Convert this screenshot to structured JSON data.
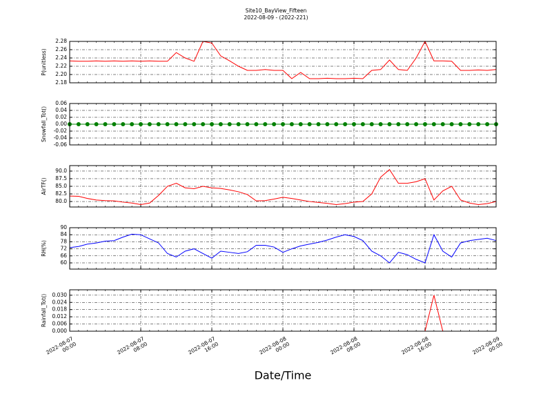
{
  "chart_data": {
    "type": "line",
    "title": "Site10_BayView_Fifteen",
    "subtitle": "2022-08-09 - (2022-221)",
    "xlabel": "Date/Time",
    "grid": true,
    "xlim": [
      "2022-08-07 00:00",
      "2022-08-09 00:00"
    ],
    "xticks": [
      "2022-08-07 00:00",
      "2022-08-07 08:00",
      "2022-08-07 16:00",
      "2022-08-08 00:00",
      "2022-08-08 08:00",
      "2022-08-08 16:00",
      "2022-08-09 00:00"
    ],
    "x": [
      "2022-08-07 00:00",
      "2022-08-07 01:00",
      "2022-08-07 02:00",
      "2022-08-07 03:00",
      "2022-08-07 04:00",
      "2022-08-07 05:00",
      "2022-08-07 06:00",
      "2022-08-07 07:00",
      "2022-08-07 08:00",
      "2022-08-07 09:00",
      "2022-08-07 10:00",
      "2022-08-07 11:00",
      "2022-08-07 12:00",
      "2022-08-07 13:00",
      "2022-08-07 14:00",
      "2022-08-07 15:00",
      "2022-08-07 16:00",
      "2022-08-07 17:00",
      "2022-08-07 18:00",
      "2022-08-07 19:00",
      "2022-08-07 20:00",
      "2022-08-07 21:00",
      "2022-08-07 22:00",
      "2022-08-07 23:00",
      "2022-08-08 00:00",
      "2022-08-08 01:00",
      "2022-08-08 02:00",
      "2022-08-08 03:00",
      "2022-08-08 04:00",
      "2022-08-08 05:00",
      "2022-08-08 06:00",
      "2022-08-08 07:00",
      "2022-08-08 08:00",
      "2022-08-08 09:00",
      "2022-08-08 10:00",
      "2022-08-08 11:00",
      "2022-08-08 12:00",
      "2022-08-08 13:00",
      "2022-08-08 14:00",
      "2022-08-08 15:00",
      "2022-08-08 16:00",
      "2022-08-08 17:00",
      "2022-08-08 18:00",
      "2022-08-08 19:00",
      "2022-08-08 20:00",
      "2022-08-08 21:00",
      "2022-08-08 22:00",
      "2022-08-08 23:00",
      "2022-08-09 00:00"
    ],
    "panels": [
      {
        "ylabel": "P(unitless)",
        "color": "#ff0000",
        "ylim": [
          2.18,
          2.28
        ],
        "yticks": [
          2.18,
          {
            "value": 2.2,
            "label": "2.20"
          },
          2.22,
          2.24,
          2.26,
          2.28
        ],
        "values": [
          2.233,
          2.232,
          2.232,
          2.233,
          2.232,
          2.233,
          2.232,
          2.233,
          2.232,
          2.233,
          2.232,
          2.232,
          2.253,
          2.24,
          2.232,
          2.28,
          2.276,
          2.245,
          2.233,
          2.22,
          2.21,
          2.21,
          2.212,
          2.21,
          2.21,
          2.19,
          2.205,
          2.19,
          2.19,
          2.191,
          2.19,
          2.19,
          2.191,
          2.19,
          2.21,
          2.212,
          2.235,
          2.212,
          2.21,
          2.24,
          2.28,
          2.233,
          2.233,
          2.232,
          2.21,
          2.21,
          2.211,
          2.21,
          2.212
        ]
      },
      {
        "ylabel": "Snowfall_Tot()",
        "color": "#008000",
        "markers": true,
        "ylim": [
          -0.06,
          0.06
        ],
        "yticks": [
          -0.06,
          -0.04,
          -0.02,
          {
            "value": 0,
            "label": "0.00"
          },
          0.02,
          0.04,
          0.06
        ],
        "values": [
          0,
          0,
          0,
          0,
          0,
          0,
          0,
          0,
          0,
          0,
          0,
          0,
          0,
          0,
          0,
          0,
          0,
          0,
          0,
          0,
          0,
          0,
          0,
          0,
          0,
          0,
          0,
          0,
          0,
          0,
          0,
          0,
          0,
          0,
          0,
          0,
          0,
          0,
          0,
          0,
          0,
          0,
          0,
          0,
          0,
          0,
          0,
          0,
          0
        ]
      },
      {
        "ylabel": "AirTF()",
        "color": "#ff0000",
        "ylim": [
          78.2,
          91.8
        ],
        "yticks": [
          {
            "value": 80,
            "label": "80.0"
          },
          82.5,
          {
            "value": 85,
            "label": "85.0"
          },
          87.5,
          {
            "value": 90,
            "label": "90.0"
          }
        ],
        "values": [
          81.8,
          81.7,
          81.0,
          80.5,
          80.3,
          80.2,
          79.8,
          79.5,
          79.0,
          79.5,
          82,
          85,
          86,
          84.5,
          84.2,
          85,
          84.5,
          84.3,
          83.8,
          83.2,
          82.3,
          80.2,
          80.3,
          80.8,
          81.4,
          81,
          80.5,
          80,
          79.7,
          79.4,
          79,
          79.3,
          79.8,
          80,
          82.5,
          88,
          90.5,
          86,
          86,
          86.5,
          87.5,
          80.5,
          83.5,
          85,
          80.5,
          79.5,
          79,
          79.3,
          80
        ]
      },
      {
        "ylabel": "RH(%)",
        "color": "#0000ff",
        "ylim": [
          54.7,
          90
        ],
        "yticks": [
          60,
          66,
          72,
          78,
          84,
          90
        ],
        "values": [
          73,
          74,
          76,
          77,
          78.5,
          79,
          82,
          84.5,
          84,
          80.5,
          77,
          68,
          65,
          70,
          72,
          68,
          64,
          70,
          69,
          68,
          69.5,
          75,
          75,
          73.5,
          69,
          72,
          74.5,
          76,
          77.5,
          79.5,
          82,
          84,
          82.5,
          79,
          70,
          66,
          60,
          69,
          67,
          63,
          60,
          84,
          70,
          65,
          77,
          79,
          80,
          81,
          79
        ]
      },
      {
        "ylabel": "Rainfall_Tot()",
        "color": "#ff0000",
        "ylim": [
          0,
          0.0345
        ],
        "yticks": [
          {
            "value": 0,
            "label": "0.000"
          },
          {
            "value": 0.006,
            "label": "0.006"
          },
          {
            "value": 0.012,
            "label": "0.012"
          },
          {
            "value": 0.018,
            "label": "0.018"
          },
          {
            "value": 0.024,
            "label": "0.024"
          },
          {
            "value": 0.03,
            "label": "0.030"
          }
        ],
        "values": [
          0,
          0,
          0,
          0,
          0,
          0,
          0,
          0,
          0,
          0,
          0,
          0,
          0,
          0,
          0,
          0,
          0,
          0,
          0,
          0,
          0,
          0,
          0,
          0,
          0,
          0,
          0,
          0,
          0,
          0,
          0,
          0,
          0,
          0,
          0,
          0,
          0,
          0,
          0,
          0,
          0,
          0.03,
          0,
          0,
          0,
          0,
          0,
          0,
          0
        ]
      }
    ]
  }
}
